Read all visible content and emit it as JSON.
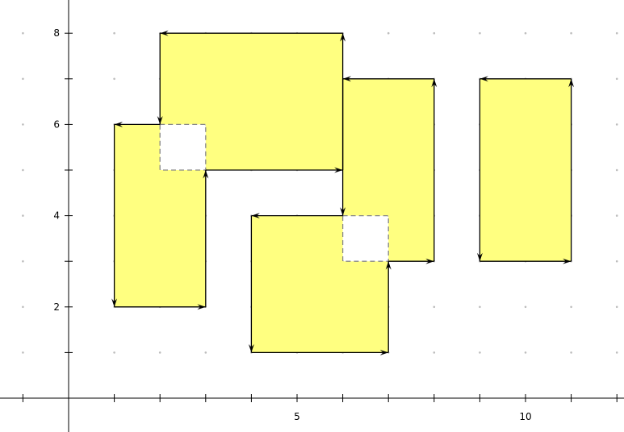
{
  "chart_data": {
    "type": "diagram",
    "title": "",
    "x_tick_labels": [
      {
        "value": 5,
        "label": "5"
      },
      {
        "value": 10,
        "label": "10"
      }
    ],
    "y_tick_labels": [
      {
        "value": 2,
        "label": "2"
      },
      {
        "value": 4,
        "label": "4"
      },
      {
        "value": 6,
        "label": "6"
      },
      {
        "value": 8,
        "label": "8"
      }
    ],
    "x_range": [
      -1.5,
      12.2
    ],
    "y_range": [
      -0.7,
      8.7
    ],
    "grid": "dots",
    "fill_color": "#ffff80",
    "edge_color": "#000000",
    "dash_color": "#888888",
    "shapes": [
      {
        "name": "rect-top",
        "vertices": [
          [
            6,
            8
          ],
          [
            2,
            8
          ],
          [
            2,
            6
          ],
          [
            3,
            6
          ],
          [
            3,
            5
          ],
          [
            6,
            5
          ]
        ]
      },
      {
        "name": "rect-left",
        "vertices": [
          [
            1,
            6
          ],
          [
            1,
            2
          ],
          [
            3,
            2
          ],
          [
            3,
            5
          ],
          [
            2,
            5
          ],
          [
            2,
            6
          ]
        ]
      },
      {
        "name": "rect-middle",
        "vertices": [
          [
            4,
            4
          ],
          [
            4,
            1
          ],
          [
            7,
            1
          ],
          [
            7,
            3
          ],
          [
            6,
            3
          ],
          [
            6,
            4
          ]
        ]
      },
      {
        "name": "rect-center-right",
        "vertices": [
          [
            6,
            7
          ],
          [
            6,
            4
          ],
          [
            7,
            4
          ],
          [
            7,
            3
          ],
          [
            8,
            3
          ],
          [
            8,
            7
          ]
        ]
      },
      {
        "name": "rect-far-right",
        "vertices": [
          [
            11,
            7
          ],
          [
            9,
            7
          ],
          [
            9,
            3
          ],
          [
            11,
            3
          ]
        ]
      }
    ],
    "arrows": [
      {
        "from": [
          6,
          8
        ],
        "to": [
          2,
          8
        ]
      },
      {
        "from": [
          2,
          8
        ],
        "to": [
          2,
          6
        ]
      },
      {
        "from": [
          3,
          5
        ],
        "to": [
          6,
          5
        ]
      },
      {
        "from": [
          6,
          5
        ],
        "to": [
          6,
          8
        ]
      },
      {
        "from": [
          2,
          6
        ],
        "to": [
          1,
          6
        ]
      },
      {
        "from": [
          1,
          6
        ],
        "to": [
          1,
          2
        ]
      },
      {
        "from": [
          1,
          2
        ],
        "to": [
          3,
          2
        ]
      },
      {
        "from": [
          3,
          2
        ],
        "to": [
          3,
          5
        ]
      },
      {
        "from": [
          6,
          4
        ],
        "to": [
          4,
          4
        ]
      },
      {
        "from": [
          4,
          4
        ],
        "to": [
          4,
          1
        ]
      },
      {
        "from": [
          4,
          1
        ],
        "to": [
          7,
          1
        ]
      },
      {
        "from": [
          7,
          1
        ],
        "to": [
          7,
          3
        ]
      },
      {
        "from": [
          8,
          7
        ],
        "to": [
          6,
          7
        ]
      },
      {
        "from": [
          6,
          7
        ],
        "to": [
          6,
          4
        ]
      },
      {
        "from": [
          7,
          3
        ],
        "to": [
          8,
          3
        ]
      },
      {
        "from": [
          8,
          3
        ],
        "to": [
          8,
          7
        ]
      },
      {
        "from": [
          11,
          7
        ],
        "to": [
          9,
          7
        ]
      },
      {
        "from": [
          9,
          7
        ],
        "to": [
          9,
          3
        ]
      },
      {
        "from": [
          9,
          3
        ],
        "to": [
          11,
          3
        ]
      },
      {
        "from": [
          11,
          3
        ],
        "to": [
          11,
          7
        ]
      }
    ],
    "dashed_squares": [
      {
        "vertices": [
          [
            2,
            6
          ],
          [
            3,
            6
          ],
          [
            3,
            5
          ],
          [
            2,
            5
          ]
        ]
      },
      {
        "vertices": [
          [
            6,
            4
          ],
          [
            7,
            4
          ],
          [
            7,
            3
          ],
          [
            6,
            3
          ]
        ]
      }
    ]
  }
}
